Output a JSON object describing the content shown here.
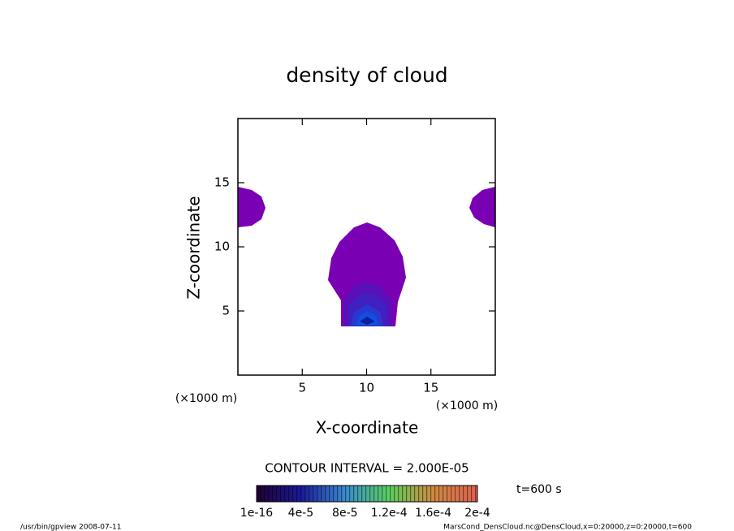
{
  "chart_data": {
    "type": "contour",
    "title": "density of cloud",
    "xlabel": "X-coordinate",
    "ylabel": "Z-coordinate",
    "xunit": "(×1000 m)",
    "yunit": "(×1000 m)",
    "xlim": [
      0,
      20
    ],
    "ylim": [
      0,
      20
    ],
    "xticks": [
      5,
      10,
      15
    ],
    "yticks": [
      5,
      10,
      15
    ],
    "contour_interval": "CONTOUR INTERVAL = 2.000E-05",
    "time": "t=600 s",
    "colorbar_ticks": [
      {
        "value": 1e-16,
        "label": "1e-16"
      },
      {
        "value": 4e-05,
        "label": "4e-5"
      },
      {
        "value": 8e-05,
        "label": "8e-5"
      },
      {
        "value": 0.00012,
        "label": "1.2e-4"
      },
      {
        "value": 0.00016,
        "label": "1.6e-4"
      },
      {
        "value": 0.0002,
        "label": "2e-4"
      }
    ],
    "footer_left": "/usr/bin/gpview   2008-07-11",
    "footer_right": "MarsCond_DensCloud.nc@DensCloud,x=0:20000,z=0:20000,t=600"
  }
}
